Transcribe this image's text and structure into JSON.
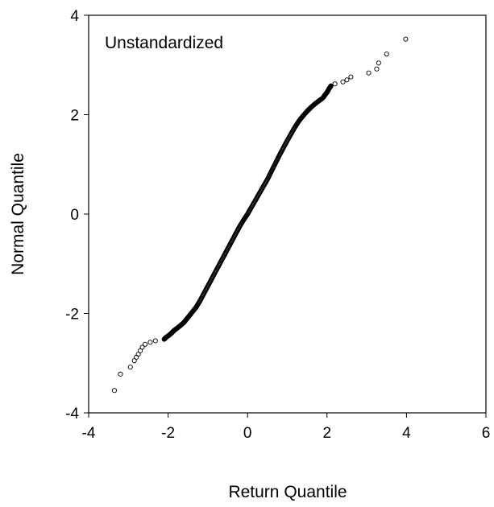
{
  "chart_data": {
    "type": "scatter",
    "title": "",
    "annotation": "Unstandardized",
    "xlabel": "Return Quantile",
    "ylabel": "Normal Quantile",
    "xlim": [
      -4,
      6
    ],
    "ylim": [
      -4,
      4
    ],
    "x_ticks": [
      "-4",
      "-2",
      "0",
      "2",
      "4",
      "6"
    ],
    "y_ticks": [
      "4",
      "2",
      "0",
      "-2",
      "-4"
    ],
    "grid": false,
    "marker": "open-circle",
    "colors": {
      "marker": "#000000",
      "axes": "#000000"
    },
    "series": [
      {
        "points": [
          [
            -3.35,
            -3.55
          ],
          [
            -3.2,
            -3.22
          ],
          [
            -2.95,
            -3.08
          ],
          [
            -2.85,
            -2.95
          ],
          [
            -2.8,
            -2.88
          ],
          [
            -2.75,
            -2.82
          ],
          [
            -2.7,
            -2.75
          ],
          [
            -2.65,
            -2.68
          ],
          [
            -2.58,
            -2.62
          ],
          [
            -2.45,
            -2.58
          ],
          [
            -2.32,
            -2.55
          ],
          [
            -2.1,
            -2.52
          ],
          [
            -2.05,
            -2.48
          ],
          [
            -1.98,
            -2.44
          ],
          [
            -1.92,
            -2.4
          ],
          [
            -1.86,
            -2.35
          ],
          [
            -1.78,
            -2.3
          ],
          [
            -1.7,
            -2.25
          ],
          [
            -1.6,
            -2.18
          ],
          [
            -1.5,
            -2.08
          ],
          [
            -1.4,
            -1.98
          ],
          [
            -1.3,
            -1.88
          ],
          [
            -1.2,
            -1.75
          ],
          [
            -1.1,
            -1.6
          ],
          [
            -1.0,
            -1.45
          ],
          [
            -0.9,
            -1.3
          ],
          [
            -0.8,
            -1.15
          ],
          [
            -0.7,
            -1.0
          ],
          [
            -0.6,
            -0.85
          ],
          [
            -0.5,
            -0.7
          ],
          [
            -0.4,
            -0.55
          ],
          [
            -0.3,
            -0.4
          ],
          [
            -0.2,
            -0.25
          ],
          [
            -0.1,
            -0.12
          ],
          [
            0.0,
            0.0
          ],
          [
            0.1,
            0.14
          ],
          [
            0.2,
            0.28
          ],
          [
            0.3,
            0.42
          ],
          [
            0.4,
            0.56
          ],
          [
            0.5,
            0.7
          ],
          [
            0.6,
            0.86
          ],
          [
            0.7,
            1.02
          ],
          [
            0.8,
            1.18
          ],
          [
            0.9,
            1.33
          ],
          [
            1.0,
            1.48
          ],
          [
            1.1,
            1.62
          ],
          [
            1.2,
            1.76
          ],
          [
            1.3,
            1.88
          ],
          [
            1.4,
            1.98
          ],
          [
            1.5,
            2.07
          ],
          [
            1.6,
            2.15
          ],
          [
            1.7,
            2.22
          ],
          [
            1.8,
            2.28
          ],
          [
            1.9,
            2.34
          ],
          [
            1.95,
            2.4
          ],
          [
            2.0,
            2.45
          ],
          [
            2.05,
            2.52
          ],
          [
            2.1,
            2.58
          ],
          [
            2.2,
            2.62
          ],
          [
            2.4,
            2.66
          ],
          [
            2.5,
            2.7
          ],
          [
            2.6,
            2.76
          ],
          [
            3.05,
            2.84
          ],
          [
            3.25,
            2.92
          ],
          [
            3.3,
            3.04
          ],
          [
            3.5,
            3.22
          ],
          [
            3.98,
            3.52
          ]
        ]
      }
    ]
  }
}
